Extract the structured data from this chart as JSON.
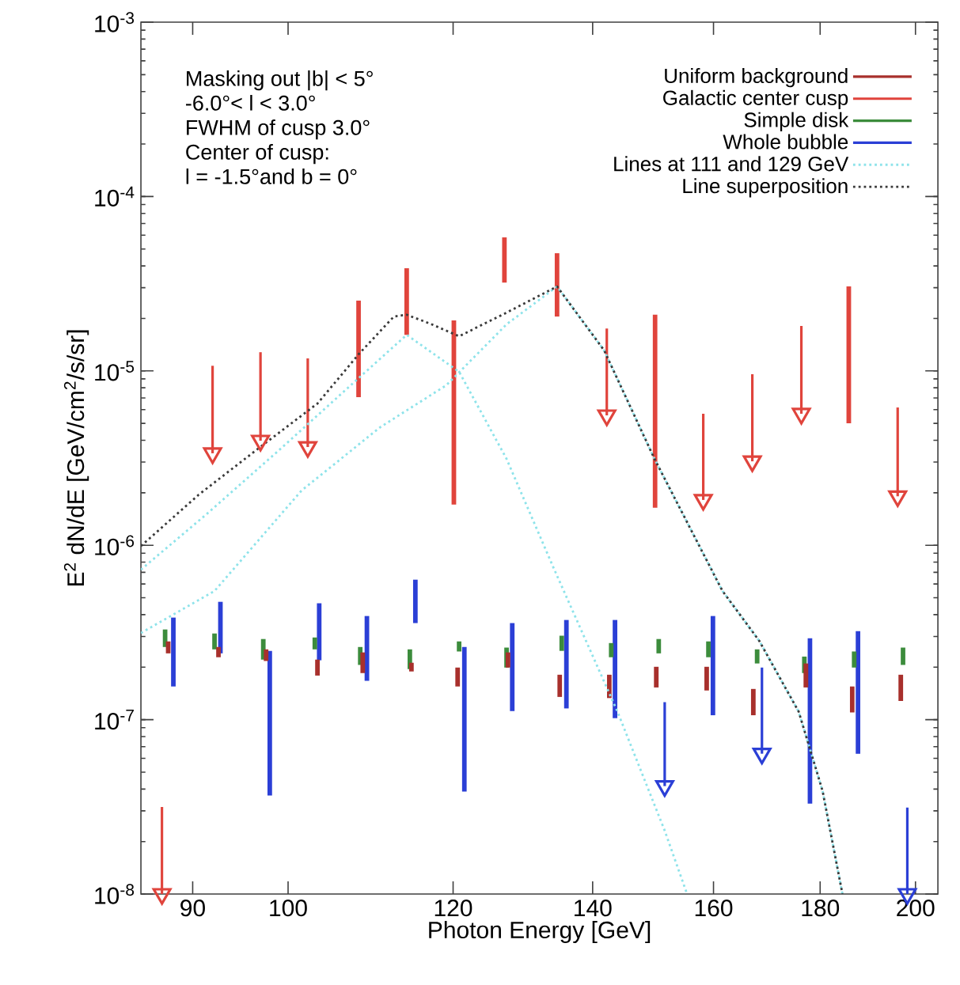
{
  "chart_data": {
    "type": "bar",
    "xlabel": "Photon Energy [GeV]",
    "ylabel": "E$^{2}$ dN/dE [GeV/cm$^{2}$/s/sr]",
    "log": "xy",
    "legend": "top right",
    "xlim": [
      85,
      205
    ],
    "ylim": [
      1e-08,
      0.001
    ],
    "xticks": [
      90,
      100,
      120,
      140,
      160,
      180,
      200
    ],
    "yticks": [
      {
        "value": 1e-08,
        "label": "10$^{-8}$"
      },
      {
        "value": 1e-07,
        "label": "10$^{-7}$"
      },
      {
        "value": 1e-06,
        "label": "10$^{-6}$"
      },
      {
        "value": 1e-05,
        "label": "10$^{-5}$"
      },
      {
        "value": 0.0001,
        "label": "10$^{-4}$"
      },
      {
        "value": 0.001,
        "label": "10$^{-3}$"
      }
    ],
    "annotations": [
      "Masking out |b| < 5°",
      "-6.0°< l < 3.0°",
      "FWHM of cusp 3.0°",
      "Center of cusp:",
      "l = -1.5°and b = 0°"
    ],
    "series": [
      {
        "name": "Uniform background",
        "color": "#a8302c",
        "x": [
          87.6,
          92.6,
          97.6,
          103.3,
          108.6,
          114.6,
          120.6,
          127.5,
          135.0,
          142.6,
          150.2,
          158.8,
          167.2,
          177.2,
          186.5,
          196.8
        ],
        "base": [
          2.4e-07,
          2.28e-07,
          2.17e-07,
          1.79e-07,
          1.85e-07,
          1.89e-07,
          1.55e-07,
          1.99e-07,
          1.35e-07,
          1.33e-07,
          1.53e-07,
          1.47e-07,
          1.06e-07,
          1.53e-07,
          1.1e-07,
          1.28e-07
        ],
        "values": [
          4.1e-08,
          3.3e-08,
          3.6e-08,
          4.2e-08,
          5.8e-08,
          2.3e-08,
          4.4e-08,
          4.4e-08,
          4.6e-08,
          4.8e-08,
          4.8e-08,
          5.4e-08,
          4.4e-08,
          5.7e-08,
          4.5e-08,
          5.3e-08
        ]
      },
      {
        "name": "Galactic center cusp",
        "color": "#e0443c",
        "x": [
          108.1,
          114.0,
          120.1,
          127.0,
          134.6,
          150.0,
          185.8
        ],
        "base": [
          7.07e-06,
          1.61e-05,
          1.71e-06,
          3.21e-05,
          2.05e-05,
          1.64e-06,
          5.01e-06
        ],
        "values": [
          1.823e-05,
          2.27e-05,
          1.779e-05,
          2.62e-05,
          2.68e-05,
          1.936e-05,
          2.549e-05
        ]
      },
      {
        "name": "Simple disk",
        "color": "#3c8c3c",
        "x": [
          87.3,
          92.2,
          97.3,
          103.0,
          108.3,
          114.4,
          120.8,
          127.3,
          135.3,
          142.9,
          150.6,
          159.1,
          167.9,
          176.9,
          186.9,
          197.3
        ],
        "base": [
          2.61e-07,
          2.53e-07,
          2.21e-07,
          2.53e-07,
          2.06e-07,
          1.95e-07,
          2.46e-07,
          1.99e-07,
          2.48e-07,
          2.28e-07,
          2.4e-07,
          2.28e-07,
          2.1e-07,
          1.85e-07,
          1.99e-07,
          2.06e-07
        ],
        "values": [
          6.8e-08,
          5.9e-08,
          6.9e-08,
          4.3e-08,
          5.5e-08,
          5.8e-08,
          3.5e-08,
          6e-08,
          5.5e-08,
          4.7e-08,
          5e-08,
          5.3e-08,
          4.3e-08,
          4.5e-08,
          4.7e-08,
          5.3e-08
        ]
      },
      {
        "name": "Whole bubble",
        "color": "#2b3fd6",
        "x": [
          88.1,
          92.8,
          98.0,
          103.5,
          109.1,
          115.1,
          121.5,
          128.1,
          136.0,
          143.5,
          159.9,
          178.0,
          187.7
        ],
        "base": [
          1.55e-07,
          2.4e-07,
          3.67e-08,
          2.19e-07,
          1.67e-07,
          3.58e-07,
          3.87e-08,
          1.12e-07,
          1.16e-07,
          1.02e-07,
          1.06e-07,
          3.3e-08,
          6.38e-08
        ],
        "values": [
          2.3e-07,
          2.34e-07,
          2.113e-07,
          2.46e-07,
          2.26e-07,
          2.77e-07,
          2.223e-07,
          2.46e-07,
          2.57e-07,
          2.71e-07,
          2.87e-07,
          2.6e-07,
          2.582e-07
        ]
      },
      {
        "name": "Lines at 111 and 129 GeV",
        "type": "line",
        "line_style": "dotted",
        "color": "#8ee3ea",
        "x": [
          85,
          91.4,
          98.9,
          107.9,
          114.0,
          120.8,
          127.3,
          134.2,
          143.9,
          151.6,
          155.4
        ],
        "values": [
          7.25e-07,
          1.51e-06,
          3.47e-06,
          8.9e-06,
          1.61e-05,
          9.88e-06,
          3.13e-06,
          7.25e-07,
          1.11e-07,
          2.31e-08,
          1e-08
        ]
      },
      {
        "type": "line",
        "line_style": "dotted",
        "color": "#8ee3ea",
        "x": [
          85,
          92.2,
          101.5,
          110.7,
          119.1,
          127.3,
          134.6,
          141.8,
          149.9,
          161.6,
          168.3,
          175.8,
          180.5,
          184.5
        ],
        "values": [
          3.14e-07,
          5.47e-07,
          2.06e-06,
          4.75e-06,
          8.27e-06,
          1.85e-05,
          3.05e-05,
          1.31e-05,
          3.13e-06,
          5.47e-07,
          2.83e-07,
          1.11e-07,
          3.89e-08,
          1e-08
        ]
      },
      {
        "name": "Line superposition",
        "type": "line",
        "line_style": "dotted",
        "color": "#3a3a3a",
        "x": [
          85,
          90.6,
          97.2,
          103.3,
          108.2,
          112.4,
          114.0,
          117.2,
          120.8,
          127.3,
          134.6,
          141.8,
          149.9,
          161.6,
          168.3,
          175.8,
          180.5,
          184.5
        ],
        "values": [
          9.9e-07,
          1.95e-06,
          3.74e-06,
          6.5e-06,
          1.26e-05,
          2.05e-05,
          2.1e-05,
          1.85e-05,
          1.58e-05,
          2.16e-05,
          3.05e-05,
          1.31e-05,
          3.13e-06,
          5.47e-07,
          2.83e-07,
          1.11e-07,
          3.89e-08,
          1e-08
        ]
      },
      {
        "type": "scatter",
        "marker": "triangle",
        "color": "#e0443c",
        "x": [
          87.0,
          92.0,
          97.0,
          102.2,
          142.2,
          158.2,
          167.0,
          176.3,
          196.1
        ],
        "values": [
          1e-08,
          3.37e-06,
          3.98e-06,
          3.66e-06,
          5.56e-06,
          1.82e-06,
          3.03e-06,
          5.68e-06,
          1.91e-06
        ],
        "errors": [
          [
            1e-08,
            3.16e-08
          ],
          [
            3.37e-06,
            1.07e-05
          ],
          [
            3.98e-06,
            1.28e-05
          ],
          [
            3.66e-06,
            1.18e-05
          ],
          [
            5.56e-06,
            1.75e-05
          ],
          [
            1.82e-06,
            5.68e-06
          ],
          [
            3.03e-06,
            9.57e-06
          ],
          [
            5.68e-06,
            1.81e-05
          ],
          [
            1.91e-06,
            6.17e-06
          ]
        ]
      },
      {
        "type": "scatter",
        "marker": "triangle",
        "color": "#2b3fd6",
        "x": [
          151.6,
          168.8,
          198.2
        ],
        "values": [
          4.16e-08,
          6.38e-08,
          1e-08
        ],
        "errors": [
          [
            4.16e-08,
            1.26e-07
          ],
          [
            6.38e-08,
            1.99e-07
          ],
          [
            1e-08,
            3.13e-08
          ]
        ]
      }
    ]
  }
}
